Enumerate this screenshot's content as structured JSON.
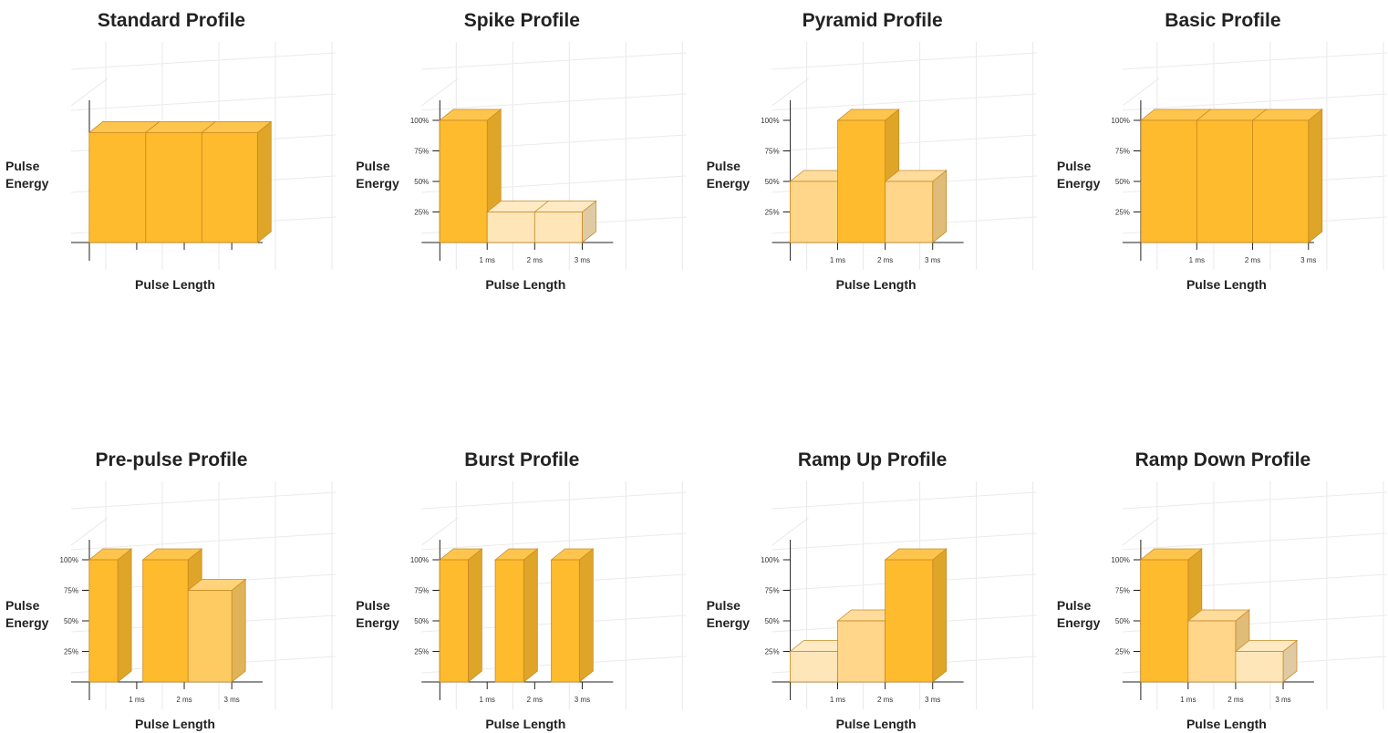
{
  "chart_data": [
    {
      "type": "bar",
      "title": "Standard Profile",
      "y_label": "Pulse Energy",
      "x_label": "Pulse Length",
      "xlim": [
        -0.38,
        3.65
      ],
      "ylim": [
        0,
        100
      ],
      "xtick_marks": [
        1,
        2,
        3
      ],
      "bars": [
        {
          "x0": 0,
          "x1": 1.19,
          "value": 90,
          "color": "#FDBB2D"
        },
        {
          "x0": 1.19,
          "x1": 2.37,
          "value": 90,
          "color": "#FDBB2D"
        },
        {
          "x0": 2.37,
          "x1": 3.54,
          "value": 90,
          "color": "#FDBB2D"
        }
      ]
    },
    {
      "type": "bar",
      "title": "Spike Profile",
      "y_label": "Pulse Energy",
      "x_label": "Pulse Length",
      "xlim": [
        -0.38,
        3.65
      ],
      "ylim": [
        0,
        100
      ],
      "yticks": [
        {
          "value": 25,
          "label": "25%"
        },
        {
          "value": 50,
          "label": "50%"
        },
        {
          "value": 75,
          "label": "75%"
        },
        {
          "value": 100,
          "label": "100%"
        }
      ],
      "xticks": [
        {
          "value": 1,
          "label": "1 ms"
        },
        {
          "value": 2,
          "label": "2 ms"
        },
        {
          "value": 3,
          "label": "3 ms"
        }
      ],
      "bars": [
        {
          "x0": 0,
          "x1": 1,
          "value": 100,
          "color": "#FDBB2D"
        },
        {
          "x0": 1,
          "x1": 2,
          "value": 25,
          "color": "#FFE6B9"
        },
        {
          "x0": 2,
          "x1": 3,
          "value": 25,
          "color": "#FFE6B9"
        }
      ]
    },
    {
      "type": "bar",
      "title": "Pyramid Profile",
      "y_label": "Pulse Energy",
      "x_label": "Pulse Length",
      "xlim": [
        -0.38,
        3.65
      ],
      "ylim": [
        0,
        100
      ],
      "yticks": [
        {
          "value": 25,
          "label": "25%"
        },
        {
          "value": 50,
          "label": "50%"
        },
        {
          "value": 75,
          "label": "75%"
        },
        {
          "value": 100,
          "label": "100%"
        }
      ],
      "xticks": [
        {
          "value": 1,
          "label": "1 ms"
        },
        {
          "value": 2,
          "label": "2 ms"
        },
        {
          "value": 3,
          "label": "3 ms"
        }
      ],
      "bars": [
        {
          "x0": 0,
          "x1": 1,
          "value": 50,
          "color": "#FFD68A"
        },
        {
          "x0": 1,
          "x1": 2,
          "value": 100,
          "color": "#FDBB2D"
        },
        {
          "x0": 2,
          "x1": 3,
          "value": 50,
          "color": "#FFD68A"
        }
      ]
    },
    {
      "type": "bar",
      "title": "Basic Profile",
      "y_label": "Pulse Energy",
      "x_label": "Pulse Length",
      "xlim": [
        -0.33,
        3.1
      ],
      "ylim": [
        0,
        100
      ],
      "yticks": [
        {
          "value": 25,
          "label": "25%"
        },
        {
          "value": 50,
          "label": "50%"
        },
        {
          "value": 75,
          "label": "75%"
        },
        {
          "value": 100,
          "label": "100%"
        }
      ],
      "xticks": [
        {
          "value": 1,
          "label": "1 ms"
        },
        {
          "value": 2,
          "label": "2 ms"
        },
        {
          "value": 3,
          "label": "3 ms"
        }
      ],
      "bars": [
        {
          "x0": 0,
          "x1": 1,
          "value": 100,
          "color": "#FDBB2D"
        },
        {
          "x0": 1,
          "x1": 2,
          "value": 100,
          "color": "#FDBB2D"
        },
        {
          "x0": 2,
          "x1": 3,
          "value": 100,
          "color": "#FDBB2D"
        }
      ]
    },
    {
      "type": "bar",
      "title": "Pre-pulse Profile",
      "y_label": "Pulse Energy",
      "x_label": "Pulse Length",
      "xlim": [
        -0.38,
        3.65
      ],
      "ylim": [
        0,
        100
      ],
      "yticks": [
        {
          "value": 25,
          "label": "25%"
        },
        {
          "value": 50,
          "label": "50%"
        },
        {
          "value": 75,
          "label": "75%"
        },
        {
          "value": 100,
          "label": "100%"
        }
      ],
      "xticks": [
        {
          "value": 1,
          "label": "1 ms"
        },
        {
          "value": 2,
          "label": "2 ms"
        },
        {
          "value": 3,
          "label": "3 ms"
        }
      ],
      "bars": [
        {
          "x0": 0,
          "x1": 0.6,
          "value": 100,
          "color": "#FDBB2D"
        },
        {
          "x0": 1.13,
          "x1": 2.08,
          "value": 100,
          "color": "#FDBB2D"
        },
        {
          "x0": 2.08,
          "x1": 3,
          "value": 75,
          "color": "#FECB62"
        }
      ]
    },
    {
      "type": "bar",
      "title": "Burst Profile",
      "y_label": "Pulse Energy",
      "x_label": "Pulse Length",
      "xlim": [
        -0.38,
        3.65
      ],
      "ylim": [
        0,
        100
      ],
      "yticks": [
        {
          "value": 25,
          "label": "25%"
        },
        {
          "value": 50,
          "label": "50%"
        },
        {
          "value": 75,
          "label": "75%"
        },
        {
          "value": 100,
          "label": "100%"
        }
      ],
      "xticks": [
        {
          "value": 1,
          "label": "1 ms"
        },
        {
          "value": 2,
          "label": "2 ms"
        },
        {
          "value": 3,
          "label": "3 ms"
        }
      ],
      "bars": [
        {
          "x0": 0,
          "x1": 0.6,
          "value": 100,
          "color": "#FDBB2D"
        },
        {
          "x0": 1.17,
          "x1": 1.77,
          "value": 100,
          "color": "#FDBB2D"
        },
        {
          "x0": 2.35,
          "x1": 2.94,
          "value": 100,
          "color": "#FDBB2D"
        }
      ]
    },
    {
      "type": "bar",
      "title": "Ramp Up Profile",
      "y_label": "Pulse Energy",
      "x_label": "Pulse Length",
      "xlim": [
        -0.38,
        3.65
      ],
      "ylim": [
        0,
        100
      ],
      "yticks": [
        {
          "value": 25,
          "label": "25%"
        },
        {
          "value": 50,
          "label": "50%"
        },
        {
          "value": 75,
          "label": "75%"
        },
        {
          "value": 100,
          "label": "100%"
        }
      ],
      "xticks": [
        {
          "value": 1,
          "label": "1 ms"
        },
        {
          "value": 2,
          "label": "2 ms"
        },
        {
          "value": 3,
          "label": "3 ms"
        }
      ],
      "bars": [
        {
          "x0": 0,
          "x1": 1,
          "value": 25,
          "color": "#FFE6B9"
        },
        {
          "x0": 1,
          "x1": 2,
          "value": 50,
          "color": "#FFD68A"
        },
        {
          "x0": 2,
          "x1": 3,
          "value": 100,
          "color": "#FDBB2D"
        }
      ]
    },
    {
      "type": "bar",
      "title": "Ramp Down Profile",
      "y_label": "Pulse Energy",
      "x_label": "Pulse Length",
      "xlim": [
        -0.38,
        3.65
      ],
      "ylim": [
        0,
        100
      ],
      "yticks": [
        {
          "value": 25,
          "label": "25%"
        },
        {
          "value": 50,
          "label": "50%"
        },
        {
          "value": 75,
          "label": "75%"
        },
        {
          "value": 100,
          "label": "100%"
        }
      ],
      "xticks": [
        {
          "value": 1,
          "label": "1 ms"
        },
        {
          "value": 2,
          "label": "2 ms"
        },
        {
          "value": 3,
          "label": "3 ms"
        }
      ],
      "bars": [
        {
          "x0": 0,
          "x1": 1,
          "value": 100,
          "color": "#FDBB2D"
        },
        {
          "x0": 1,
          "x1": 2,
          "value": 50,
          "color": "#FFD68A"
        },
        {
          "x0": 2,
          "x1": 3,
          "value": 25,
          "color": "#FFE6B9"
        }
      ]
    }
  ]
}
